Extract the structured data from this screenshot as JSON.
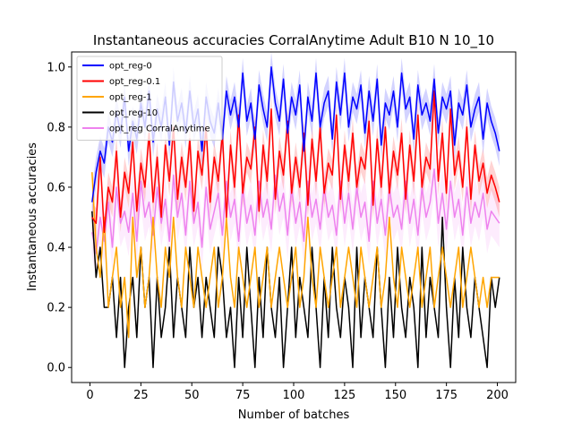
{
  "chart_data": {
    "type": "line",
    "title": "Instantaneous accuracies CorralAnytime Adult B10 N 10_10",
    "xlabel": "Number of batches",
    "ylabel": "Instantaneous accuracies",
    "xlim": [
      -9,
      209
    ],
    "ylim": [
      -0.05,
      1.05
    ],
    "xticks": [
      0,
      25,
      50,
      75,
      100,
      125,
      150,
      175,
      200
    ],
    "yticks": [
      0.0,
      0.2,
      0.4,
      0.6,
      0.8,
      1.0
    ],
    "ytick_labels": [
      "0.0",
      "0.2",
      "0.4",
      "0.6",
      "0.8",
      "1.0"
    ],
    "grid": false,
    "legend_position": "top-left",
    "series": [
      {
        "name": "opt_reg-0",
        "color": "#0000ff",
        "band_color": "#8080ff",
        "band_halfwidth": 0.05,
        "x": [
          1,
          3,
          5,
          7,
          9,
          11,
          13,
          15,
          17,
          19,
          21,
          23,
          25,
          27,
          29,
          31,
          33,
          35,
          37,
          39,
          41,
          43,
          45,
          47,
          49,
          51,
          53,
          55,
          57,
          59,
          61,
          63,
          65,
          67,
          69,
          71,
          73,
          75,
          77,
          79,
          81,
          83,
          85,
          87,
          89,
          91,
          93,
          95,
          97,
          99,
          101,
          103,
          105,
          107,
          109,
          111,
          113,
          115,
          117,
          119,
          121,
          123,
          125,
          127,
          129,
          131,
          133,
          135,
          137,
          139,
          141,
          143,
          145,
          147,
          149,
          151,
          153,
          155,
          157,
          159,
          161,
          163,
          165,
          167,
          169,
          171,
          173,
          175,
          177,
          179,
          181,
          183,
          185,
          187,
          189,
          191,
          193,
          195,
          197,
          199,
          201
        ],
        "y": [
          0.55,
          0.65,
          0.72,
          0.68,
          0.8,
          0.75,
          0.85,
          0.78,
          0.9,
          0.72,
          0.82,
          0.76,
          0.88,
          0.8,
          0.92,
          0.75,
          0.86,
          0.8,
          0.9,
          0.74,
          0.95,
          0.82,
          0.88,
          0.78,
          0.92,
          0.8,
          0.86,
          0.72,
          0.9,
          0.82,
          0.78,
          0.88,
          0.76,
          0.92,
          0.84,
          0.9,
          0.8,
          0.98,
          0.82,
          0.88,
          0.76,
          0.94,
          0.86,
          0.8,
          1.0,
          0.88,
          0.82,
          0.96,
          0.78,
          0.9,
          0.84,
          0.94,
          0.72,
          0.9,
          0.82,
          0.98,
          0.8,
          0.88,
          0.92,
          0.76,
          0.95,
          0.84,
          0.98,
          0.8,
          0.9,
          0.86,
          0.94,
          0.78,
          0.92,
          0.82,
          0.96,
          0.74,
          0.88,
          0.84,
          0.92,
          0.8,
          0.98,
          0.86,
          0.9,
          0.76,
          0.94,
          0.84,
          0.88,
          0.82,
          0.96,
          0.78,
          0.9,
          0.86,
          0.92,
          0.74,
          0.88,
          0.84,
          0.94,
          0.8,
          0.86,
          0.9,
          0.76,
          0.88,
          0.82,
          0.78,
          0.72
        ]
      },
      {
        "name": "opt_reg-0.1",
        "color": "#ff0000",
        "band_color": "#ff8080",
        "band_halfwidth": 0.05,
        "x": [
          1,
          3,
          5,
          7,
          9,
          11,
          13,
          15,
          17,
          19,
          21,
          23,
          25,
          27,
          29,
          31,
          33,
          35,
          37,
          39,
          41,
          43,
          45,
          47,
          49,
          51,
          53,
          55,
          57,
          59,
          61,
          63,
          65,
          67,
          69,
          71,
          73,
          75,
          77,
          79,
          81,
          83,
          85,
          87,
          89,
          91,
          93,
          95,
          97,
          99,
          101,
          103,
          105,
          107,
          109,
          111,
          113,
          115,
          117,
          119,
          121,
          123,
          125,
          127,
          129,
          131,
          133,
          135,
          137,
          139,
          141,
          143,
          145,
          147,
          149,
          151,
          153,
          155,
          157,
          159,
          161,
          163,
          165,
          167,
          169,
          171,
          173,
          175,
          177,
          179,
          181,
          183,
          185,
          187,
          189,
          191,
          193,
          195,
          197,
          199,
          201
        ],
        "y": [
          0.5,
          0.48,
          0.7,
          0.45,
          0.6,
          0.55,
          0.72,
          0.5,
          0.65,
          0.58,
          0.75,
          0.52,
          0.68,
          0.6,
          0.78,
          0.55,
          0.7,
          0.5,
          0.74,
          0.62,
          0.8,
          0.56,
          0.7,
          0.6,
          0.76,
          0.52,
          0.72,
          0.64,
          0.8,
          0.55,
          0.7,
          0.62,
          0.78,
          0.5,
          0.74,
          0.6,
          0.84,
          0.58,
          0.7,
          0.66,
          0.8,
          0.52,
          0.74,
          0.62,
          0.86,
          0.56,
          0.72,
          0.64,
          0.82,
          0.58,
          0.7,
          0.6,
          0.78,
          0.54,
          0.76,
          0.62,
          0.8,
          0.58,
          0.68,
          0.64,
          0.84,
          0.56,
          0.74,
          0.62,
          0.78,
          0.6,
          0.7,
          0.66,
          0.82,
          0.54,
          0.76,
          0.6,
          0.8,
          0.58,
          0.72,
          0.64,
          0.78,
          0.56,
          0.74,
          0.62,
          0.84,
          0.6,
          0.7,
          0.66,
          0.92,
          0.62,
          0.78,
          0.58,
          0.86,
          0.64,
          0.72,
          0.6,
          0.8,
          0.56,
          0.74,
          0.62,
          0.68,
          0.58,
          0.64,
          0.6,
          0.55
        ]
      },
      {
        "name": "opt_reg-1",
        "color": "#ffa500",
        "band_color": "#ffd080",
        "band_halfwidth": 0.0,
        "x": [
          1,
          3,
          5,
          7,
          9,
          11,
          13,
          15,
          17,
          19,
          21,
          23,
          25,
          27,
          29,
          31,
          33,
          35,
          37,
          39,
          41,
          43,
          45,
          47,
          49,
          51,
          53,
          55,
          57,
          59,
          61,
          63,
          65,
          67,
          69,
          71,
          73,
          75,
          77,
          79,
          81,
          83,
          85,
          87,
          89,
          91,
          93,
          95,
          97,
          99,
          101,
          103,
          105,
          107,
          109,
          111,
          113,
          115,
          117,
          119,
          121,
          123,
          125,
          127,
          129,
          131,
          133,
          135,
          137,
          139,
          141,
          143,
          145,
          147,
          149,
          151,
          153,
          155,
          157,
          159,
          161,
          163,
          165,
          167,
          169,
          171,
          173,
          175,
          177,
          179,
          181,
          183,
          185,
          187,
          189,
          191,
          193,
          195,
          197,
          199,
          201
        ],
        "y": [
          0.65,
          0.4,
          0.3,
          0.5,
          0.2,
          0.3,
          0.4,
          0.2,
          0.3,
          0.1,
          0.5,
          0.3,
          0.4,
          0.2,
          0.3,
          0.5,
          0.3,
          0.2,
          0.4,
          0.3,
          0.5,
          0.3,
          0.2,
          0.4,
          0.3,
          0.2,
          0.4,
          0.3,
          0.2,
          0.3,
          0.4,
          0.2,
          0.3,
          0.5,
          0.3,
          0.2,
          0.4,
          0.3,
          0.2,
          0.3,
          0.4,
          0.2,
          0.3,
          0.4,
          0.2,
          0.3,
          0.4,
          0.3,
          0.2,
          0.3,
          0.4,
          0.2,
          0.3,
          0.5,
          0.3,
          0.2,
          0.4,
          0.3,
          0.2,
          0.3,
          0.4,
          0.2,
          0.3,
          0.4,
          0.3,
          0.2,
          0.4,
          0.3,
          0.2,
          0.3,
          0.4,
          0.2,
          0.3,
          0.5,
          0.3,
          0.2,
          0.4,
          0.3,
          0.2,
          0.3,
          0.4,
          0.2,
          0.3,
          0.4,
          0.2,
          0.3,
          0.4,
          0.3,
          0.2,
          0.3,
          0.4,
          0.2,
          0.3,
          0.4,
          0.3,
          0.2,
          0.3,
          0.2,
          0.3,
          0.3,
          0.3
        ]
      },
      {
        "name": "opt_reg-10",
        "color": "#000000",
        "band_color": "#808080",
        "band_halfwidth": 0.0,
        "x": [
          1,
          3,
          5,
          7,
          9,
          11,
          13,
          15,
          17,
          19,
          21,
          23,
          25,
          27,
          29,
          31,
          33,
          35,
          37,
          39,
          41,
          43,
          45,
          47,
          49,
          51,
          53,
          55,
          57,
          59,
          61,
          63,
          65,
          67,
          69,
          71,
          73,
          75,
          77,
          79,
          81,
          83,
          85,
          87,
          89,
          91,
          93,
          95,
          97,
          99,
          101,
          103,
          105,
          107,
          109,
          111,
          113,
          115,
          117,
          119,
          121,
          123,
          125,
          127,
          129,
          131,
          133,
          135,
          137,
          139,
          141,
          143,
          145,
          147,
          149,
          151,
          153,
          155,
          157,
          159,
          161,
          163,
          165,
          167,
          169,
          171,
          173,
          175,
          177,
          179,
          181,
          183,
          185,
          187,
          189,
          191,
          193,
          195,
          197,
          199,
          201
        ],
        "y": [
          0.52,
          0.3,
          0.4,
          0.2,
          0.2,
          0.3,
          0.1,
          0.3,
          0.0,
          0.2,
          0.3,
          0.1,
          0.4,
          0.2,
          0.3,
          0.0,
          0.3,
          0.1,
          0.2,
          0.4,
          0.1,
          0.3,
          0.2,
          0.1,
          0.4,
          0.2,
          0.3,
          0.1,
          0.3,
          0.2,
          0.1,
          0.4,
          0.3,
          0.1,
          0.2,
          0.0,
          0.3,
          0.1,
          0.4,
          0.2,
          0.0,
          0.3,
          0.1,
          0.4,
          0.2,
          0.1,
          0.3,
          0.0,
          0.2,
          0.4,
          0.1,
          0.3,
          0.2,
          0.1,
          0.4,
          0.2,
          0.0,
          0.3,
          0.1,
          0.4,
          0.2,
          0.1,
          0.3,
          0.2,
          0.0,
          0.4,
          0.1,
          0.3,
          0.2,
          0.1,
          0.4,
          0.2,
          0.0,
          0.3,
          0.1,
          0.4,
          0.2,
          0.1,
          0.3,
          0.2,
          0.0,
          0.4,
          0.1,
          0.3,
          0.2,
          0.1,
          0.5,
          0.2,
          0.0,
          0.3,
          0.1,
          0.4,
          0.2,
          0.1,
          0.3,
          0.2,
          0.1,
          0.0,
          0.3,
          0.2,
          0.3
        ]
      },
      {
        "name": "opt_reg CorralAnytime",
        "color": "#ee82ee",
        "band_color": "#f8c8f8",
        "band_halfwidth": 0.08,
        "x": [
          1,
          3,
          5,
          7,
          9,
          11,
          13,
          15,
          17,
          19,
          21,
          23,
          25,
          27,
          29,
          31,
          33,
          35,
          37,
          39,
          41,
          43,
          45,
          47,
          49,
          51,
          53,
          55,
          57,
          59,
          61,
          63,
          65,
          67,
          69,
          71,
          73,
          75,
          77,
          79,
          81,
          83,
          85,
          87,
          89,
          91,
          93,
          95,
          97,
          99,
          101,
          103,
          105,
          107,
          109,
          111,
          113,
          115,
          117,
          119,
          121,
          123,
          125,
          127,
          129,
          131,
          133,
          135,
          137,
          139,
          141,
          143,
          145,
          147,
          149,
          151,
          153,
          155,
          157,
          159,
          161,
          163,
          165,
          167,
          169,
          171,
          173,
          175,
          177,
          179,
          181,
          183,
          185,
          187,
          189,
          191,
          193,
          195,
          197,
          199,
          201
        ],
        "y": [
          0.45,
          0.38,
          0.5,
          0.42,
          0.55,
          0.4,
          0.6,
          0.48,
          0.52,
          0.45,
          0.58,
          0.42,
          0.62,
          0.5,
          0.55,
          0.44,
          0.6,
          0.48,
          0.56,
          0.42,
          0.64,
          0.5,
          0.58,
          0.44,
          0.62,
          0.48,
          0.55,
          0.4,
          0.6,
          0.46,
          0.52,
          0.58,
          0.44,
          0.62,
          0.5,
          0.56,
          0.42,
          0.6,
          0.48,
          0.54,
          0.44,
          0.62,
          0.5,
          0.56,
          0.46,
          0.64,
          0.52,
          0.58,
          0.44,
          0.6,
          0.48,
          0.55,
          0.42,
          0.62,
          0.5,
          0.56,
          0.46,
          0.6,
          0.5,
          0.54,
          0.44,
          0.62,
          0.48,
          0.58,
          0.46,
          0.6,
          0.5,
          0.55,
          0.42,
          0.62,
          0.48,
          0.56,
          0.44,
          0.6,
          0.5,
          0.54,
          0.46,
          0.62,
          0.48,
          0.56,
          0.44,
          0.6,
          0.5,
          0.55,
          0.66,
          0.48,
          0.58,
          0.46,
          0.62,
          0.5,
          0.56,
          0.44,
          0.6,
          0.48,
          0.55,
          0.5,
          0.58,
          0.46,
          0.52,
          0.5,
          0.48
        ]
      }
    ]
  }
}
